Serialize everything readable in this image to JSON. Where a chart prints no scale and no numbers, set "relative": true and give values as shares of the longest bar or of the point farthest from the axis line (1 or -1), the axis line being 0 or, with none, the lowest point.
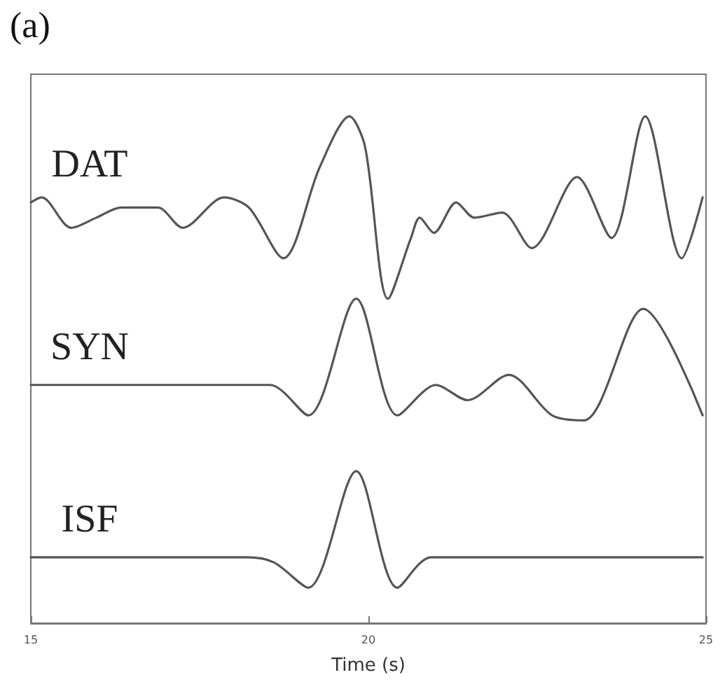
{
  "chart_data": {
    "type": "line",
    "title": "(a)",
    "xlabel": "Time (s)",
    "relative": true,
    "xlim": [
      15,
      25
    ],
    "xticks": [
      15,
      20,
      25
    ],
    "grid": false,
    "legend": false,
    "marker": "none",
    "line_style": "solid",
    "series": [
      {
        "name": "DAT",
        "color": "#555555",
        "x": [
          15.0,
          15.16,
          15.6,
          15.97,
          16.34,
          16.88,
          17.25,
          17.86,
          18.23,
          18.74,
          19.28,
          19.72,
          19.95,
          20.29,
          20.63,
          20.76,
          20.97,
          21.3,
          21.57,
          21.98,
          22.42,
          23.09,
          23.6,
          24.1,
          24.64,
          24.95
        ],
        "values": [
          0.83,
          0.84,
          0.78,
          0.8,
          0.82,
          0.82,
          0.78,
          0.84,
          0.82,
          0.72,
          0.9,
          1.0,
          0.94,
          0.64,
          0.76,
          0.8,
          0.77,
          0.83,
          0.8,
          0.81,
          0.74,
          0.88,
          0.76,
          1.0,
          0.72,
          0.84
        ]
      },
      {
        "name": "SYN",
        "color": "#555555",
        "x": [
          15.0,
          16.58,
          18.54,
          19.11,
          19.82,
          20.43,
          21.0,
          21.47,
          22.08,
          22.72,
          23.19,
          24.07,
          24.95
        ],
        "values": [
          0.47,
          0.47,
          0.47,
          0.41,
          0.64,
          0.41,
          0.47,
          0.44,
          0.49,
          0.41,
          0.4,
          0.62,
          0.41
        ]
      },
      {
        "name": "ISF",
        "color": "#555555",
        "x": [
          15.0,
          18.2,
          18.6,
          19.11,
          19.82,
          20.43,
          20.93,
          24.95
        ],
        "values": [
          0.13,
          0.13,
          0.12,
          0.07,
          0.3,
          0.07,
          0.13,
          0.13
        ]
      }
    ]
  }
}
